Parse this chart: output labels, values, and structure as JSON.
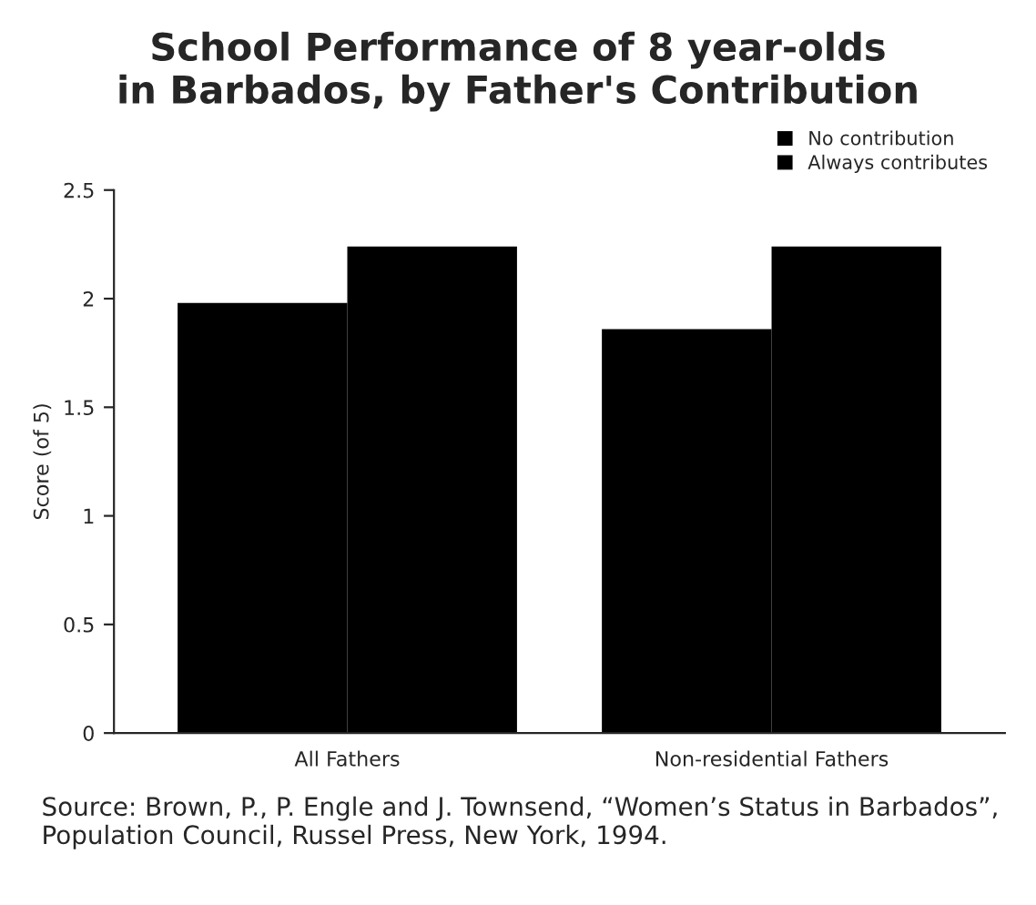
{
  "chart_data": {
    "type": "bar",
    "title": "School Performance of 8 year-olds\nin Barbados, by Father's Contribution",
    "ylabel": "Score (of 5)",
    "categories": [
      "All Fathers",
      "Non-residential Fathers"
    ],
    "series": [
      {
        "name": "No contribution",
        "color": "#000000",
        "values": [
          1.98,
          1.86
        ]
      },
      {
        "name": "Always contributes",
        "color": "#000000",
        "values": [
          2.24,
          2.24
        ]
      }
    ],
    "ylim": [
      0,
      2.5
    ],
    "yticks": [
      0,
      0.5,
      1,
      1.5,
      2,
      2.5
    ],
    "grid": false,
    "legend": "top right",
    "annotations": [
      "Source: Brown, P., P. Engle and J. Townsend, “Women’s Status in Barbados”, Population Council, Russel Press, New York, 1994."
    ]
  }
}
